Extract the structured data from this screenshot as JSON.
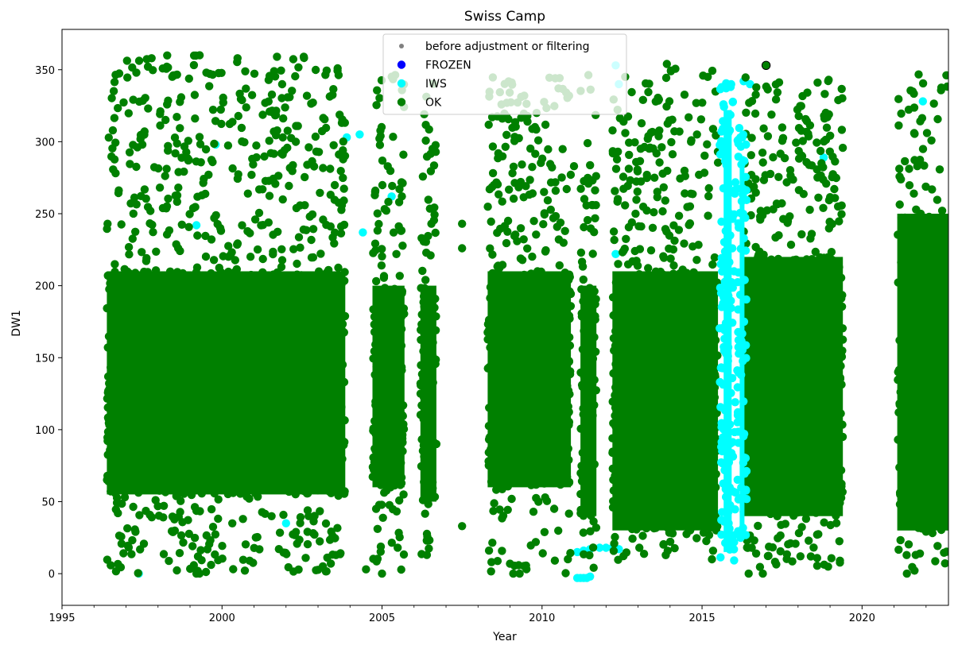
{
  "chart_data": {
    "type": "scatter",
    "title": "Swiss Camp",
    "xlabel": "Year",
    "ylabel": "DW1",
    "xlim": [
      1995,
      2022.7
    ],
    "ylim": [
      -22,
      378
    ],
    "x_ticks": [
      1995,
      2000,
      2005,
      2010,
      2015,
      2020
    ],
    "x_tick_labels": [
      "1995",
      "2000",
      "2005",
      "2010",
      "2015",
      "2020"
    ],
    "y_ticks": [
      0,
      50,
      100,
      150,
      200,
      250,
      300,
      350
    ],
    "y_tick_labels": [
      "0",
      "50",
      "100",
      "150",
      "200",
      "250",
      "300",
      "350"
    ],
    "grid": false,
    "legend_placement": "upper-center",
    "colors": {
      "before": "#808080",
      "frozen": "#0000ff",
      "iws": "#00ffff",
      "ok": "#008000"
    },
    "series": [
      {
        "name": "before adjustment or filtering",
        "color": "#808080",
        "marker": "small-dot"
      },
      {
        "name": "FROZEN",
        "color": "#0000ff",
        "marker": "dot"
      },
      {
        "name": "IWS",
        "color": "#00ffff",
        "marker": "dot",
        "points": [
          [
            1997.4,
            0
          ],
          [
            2004.4,
            237
          ],
          [
            1999.2,
            242
          ],
          [
            1999.8,
            298
          ],
          [
            2005.3,
            262
          ],
          [
            2011.1,
            -3
          ],
          [
            2011.2,
            -3
          ],
          [
            2011.3,
            -3
          ],
          [
            2011.4,
            -3
          ],
          [
            2011.5,
            -2
          ],
          [
            2011.1,
            15
          ],
          [
            2011.3,
            16
          ],
          [
            2011.5,
            17
          ],
          [
            2011.8,
            18
          ],
          [
            2012.0,
            18
          ],
          [
            2012.2,
            18
          ],
          [
            2012.4,
            17
          ],
          [
            2012.3,
            222
          ],
          [
            2012.3,
            353
          ],
          [
            2012.4,
            340
          ],
          [
            2016.3,
            342
          ],
          [
            2016.5,
            340
          ],
          [
            2021.9,
            328
          ],
          [
            2018.8,
            289
          ],
          [
            2003.9,
            303
          ],
          [
            2004.3,
            305
          ],
          [
            2002.0,
            35
          ],
          [
            2001.9,
            160
          ]
        ],
        "bands": [
          {
            "x_from": 2015.55,
            "x_to": 2016.05,
            "y_from": 5,
            "y_to": 342
          },
          {
            "x_from": 2016.1,
            "x_to": 2016.4,
            "y_from": 20,
            "y_to": 310
          }
        ]
      },
      {
        "name": "OK",
        "color": "#008000",
        "marker": "dot",
        "points": [
          [
            2017.0,
            353
          ],
          [
            2021.4,
            0
          ],
          [
            2009.1,
            0
          ],
          [
            2009.3,
            0
          ],
          [
            2006.4,
            13
          ],
          [
            2007.5,
            33
          ],
          [
            2007.5,
            243
          ],
          [
            2007.5,
            226
          ],
          [
            2003.4,
            7
          ],
          [
            2005.0,
            0
          ],
          [
            1999.2,
            0
          ],
          [
            2013.9,
            354
          ],
          [
            1997.8,
            358
          ],
          [
            1999.3,
            360
          ],
          [
            2004.5,
            3
          ],
          [
            2016.9,
            0
          ],
          [
            2008.9,
            327
          ],
          [
            2011.0,
            283
          ],
          [
            2012.6,
            345
          ],
          [
            2018.4,
            12
          ]
        ],
        "bands": [
          {
            "x_from": 1996.4,
            "x_to": 2003.85,
            "y_from": 0,
            "y_to": 360,
            "core_from": 55,
            "core_to": 210
          },
          {
            "x_from": 2004.7,
            "x_to": 2005.7,
            "y_from": 0,
            "y_to": 348,
            "core_from": 60,
            "core_to": 200
          },
          {
            "x_from": 2006.2,
            "x_to": 2006.7,
            "y_from": 10,
            "y_to": 345,
            "core_from": 50,
            "core_to": 200
          },
          {
            "x_from": 2008.3,
            "x_to": 2010.9,
            "y_from": 0,
            "y_to": 345,
            "core_from": 60,
            "core_to": 210
          },
          {
            "x_from": 2011.2,
            "x_to": 2011.7,
            "y_from": 2,
            "y_to": 348,
            "core_from": 40,
            "core_to": 200
          },
          {
            "x_from": 2012.2,
            "x_to": 2015.5,
            "y_from": 8,
            "y_to": 352,
            "core_from": 30,
            "core_to": 210
          },
          {
            "x_from": 2016.3,
            "x_to": 2019.4,
            "y_from": 0,
            "y_to": 347,
            "core_from": 40,
            "core_to": 220
          },
          {
            "x_from": 2021.1,
            "x_to": 2022.7,
            "y_from": 0,
            "y_to": 348,
            "core_from": 30,
            "core_to": 250
          }
        ]
      }
    ]
  }
}
